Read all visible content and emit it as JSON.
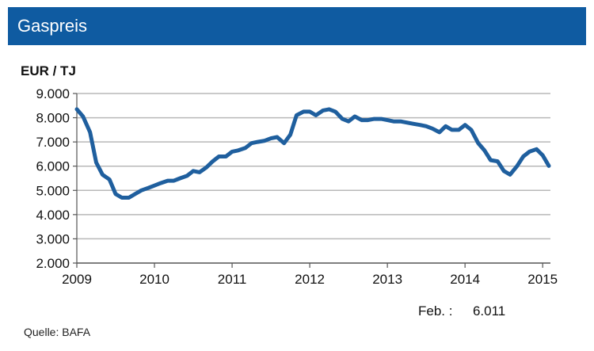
{
  "header": {
    "title": "Gaspreis"
  },
  "footer": {
    "label": "Feb. :",
    "value": "6.011",
    "source": "Quelle:  BAFA"
  },
  "colors": {
    "title_bar": "#0f5ba1",
    "line": "#1f5f9e",
    "grid": "#b8b8b8"
  },
  "chart_data": {
    "type": "line",
    "title": "Gaspreis",
    "ylabel": "EUR / TJ",
    "xlabel": "",
    "ylim": [
      2000,
      9000
    ],
    "xlim": [
      2009,
      2015.1
    ],
    "yticks": [
      2000,
      3000,
      4000,
      5000,
      6000,
      7000,
      8000,
      9000
    ],
    "ytick_labels": [
      "2.000",
      "3.000",
      "4.000",
      "5.000",
      "6.000",
      "7.000",
      "8.000",
      "9.000"
    ],
    "xticks": [
      2009,
      2010,
      2011,
      2012,
      2013,
      2014,
      2015
    ],
    "xtick_labels": [
      "2009",
      "2010",
      "2011",
      "2012",
      "2013",
      "2014",
      "2015"
    ],
    "grid": "horizontal",
    "series": [
      {
        "x": [
          2009.0,
          2009.08,
          2009.17,
          2009.25,
          2009.33,
          2009.42,
          2009.5,
          2009.58,
          2009.67,
          2009.75,
          2009.83,
          2009.92,
          2010.0,
          2010.08,
          2010.17,
          2010.25,
          2010.33,
          2010.42,
          2010.5,
          2010.58,
          2010.67,
          2010.75,
          2010.83,
          2010.92,
          2011.0,
          2011.08,
          2011.17,
          2011.25,
          2011.33,
          2011.42,
          2011.5,
          2011.58,
          2011.67,
          2011.75,
          2011.83,
          2011.92,
          2012.0,
          2012.08,
          2012.17,
          2012.25,
          2012.33,
          2012.42,
          2012.5,
          2012.58,
          2012.67,
          2012.75,
          2012.83,
          2012.92,
          2013.0,
          2013.08,
          2013.17,
          2013.25,
          2013.33,
          2013.42,
          2013.5,
          2013.58,
          2013.67,
          2013.75,
          2013.83,
          2013.92,
          2014.0,
          2014.08,
          2014.17,
          2014.25,
          2014.33,
          2014.42,
          2014.5,
          2014.58,
          2014.67,
          2014.75,
          2014.83,
          2014.92,
          2015.0,
          2015.08
        ],
        "y": [
          8350,
          8050,
          7400,
          6150,
          5650,
          5450,
          4850,
          4700,
          4700,
          4850,
          5000,
          5100,
          5200,
          5300,
          5400,
          5400,
          5500,
          5600,
          5800,
          5750,
          5950,
          6200,
          6400,
          6400,
          6600,
          6650,
          6750,
          6950,
          7000,
          7050,
          7150,
          7200,
          6950,
          7300,
          8100,
          8250,
          8250,
          8100,
          8300,
          8350,
          8250,
          7950,
          7850,
          8050,
          7900,
          7900,
          7950,
          7950,
          7900,
          7850,
          7850,
          7800,
          7750,
          7700,
          7650,
          7550,
          7400,
          7650,
          7500,
          7500,
          7700,
          7500,
          6950,
          6650,
          6250,
          6200,
          5800,
          5650,
          6000,
          6400,
          6600,
          6700,
          6450,
          6011
        ]
      }
    ]
  }
}
